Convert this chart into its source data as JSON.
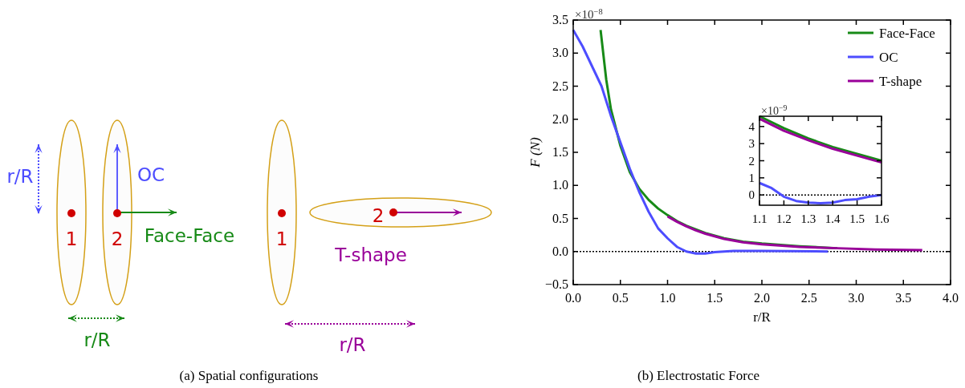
{
  "chart_data": [
    {
      "type": "other",
      "title": "(a) Spatial configurations",
      "annotations": [
        "r/R",
        "OC",
        "1",
        "2",
        "Face-Face",
        "1",
        "2",
        "T-shape",
        "r/R",
        "r/R"
      ]
    },
    {
      "type": "line",
      "title": "(b)  Electrostatic Force",
      "xlabel": "r/R",
      "ylabel": "F (N)",
      "annotations": [
        "×10$^{−8}$"
      ],
      "xlim": [
        0,
        4
      ],
      "ylim": [
        -0.5,
        3.5
      ],
      "xticks": [
        {
          "value": 0,
          "label": "0.0"
        },
        0.5,
        {
          "value": 1,
          "label": "1.0"
        },
        1.5,
        {
          "value": 2,
          "label": "2.0"
        },
        2.5,
        {
          "value": 3,
          "label": "3.0"
        },
        3.5,
        {
          "value": 4,
          "label": "4.0"
        }
      ],
      "yticks": [
        {
          "value": -0.5,
          "label": "−0.5"
        },
        {
          "value": 0,
          "label": "0.0"
        },
        0.5,
        {
          "value": 1,
          "label": "1.0"
        },
        1.5,
        {
          "value": 2,
          "label": "2.0"
        },
        2.5,
        {
          "value": 3,
          "label": "3.0"
        },
        3.5
      ],
      "legend": "top right",
      "grid": false,
      "line_style": "solid",
      "ref_lines": [
        {
          "axis": "y",
          "value": 0,
          "line_style": "dotted",
          "color": "#000000"
        }
      ],
      "series": [
        {
          "name": "Face-Face",
          "color": "#178a17",
          "x": [
            0.29,
            0.35,
            0.4,
            0.5,
            0.6,
            0.7,
            0.8,
            0.9,
            1.0,
            1.1,
            1.2,
            1.4,
            1.6,
            1.8,
            2.0,
            2.4,
            2.8
          ],
          "values": [
            3.35,
            2.6,
            2.15,
            1.6,
            1.2,
            0.95,
            0.78,
            0.65,
            0.55,
            0.46,
            0.39,
            0.28,
            0.2,
            0.15,
            0.12,
            0.08,
            0.05
          ]
        },
        {
          "name": "OC",
          "color": "#4d4dff",
          "x": [
            0,
            0.1,
            0.2,
            0.3,
            0.4,
            0.5,
            0.6,
            0.7,
            0.8,
            0.9,
            1.0,
            1.1,
            1.2,
            1.3,
            1.4,
            1.5,
            1.7,
            2.0,
            2.7
          ],
          "values": [
            3.35,
            3.1,
            2.8,
            2.5,
            2.05,
            1.65,
            1.25,
            0.9,
            0.6,
            0.35,
            0.2,
            0.07,
            0.0,
            -0.03,
            -0.03,
            -0.01,
            0.01,
            0.01,
            0.0
          ]
        },
        {
          "name": "T-shape",
          "color": "#990099",
          "x": [
            1.0,
            1.1,
            1.2,
            1.3,
            1.4,
            1.5,
            1.6,
            1.8,
            2.0,
            2.4,
            2.8,
            3.2,
            3.7
          ],
          "values": [
            0.53,
            0.45,
            0.38,
            0.32,
            0.27,
            0.23,
            0.19,
            0.14,
            0.11,
            0.07,
            0.05,
            0.03,
            0.02
          ]
        }
      ]
    },
    {
      "type": "line",
      "annotations": [
        "×10$^{−9}$"
      ],
      "xlim": [
        1.1,
        1.6
      ],
      "ylim": [
        -0.6,
        4.6
      ],
      "xticks": [
        1.1,
        1.2,
        1.3,
        1.4,
        1.5,
        1.6
      ],
      "yticks": [
        0,
        1,
        2,
        3,
        4
      ],
      "grid": false,
      "line_style": "solid",
      "ref_lines": [
        {
          "axis": "y",
          "value": 0,
          "line_style": "dotted",
          "color": "#000000"
        }
      ],
      "series": [
        {
          "color": "#178a17",
          "x": [
            1.1,
            1.2,
            1.3,
            1.4,
            1.5,
            1.6
          ],
          "values": [
            4.6,
            3.9,
            3.3,
            2.8,
            2.4,
            2.0
          ]
        },
        {
          "color": "#4d4dff",
          "x": [
            1.1,
            1.15,
            1.2,
            1.25,
            1.3,
            1.35,
            1.4,
            1.45,
            1.5,
            1.55,
            1.6
          ],
          "values": [
            0.7,
            0.4,
            -0.1,
            -0.35,
            -0.45,
            -0.48,
            -0.45,
            -0.3,
            -0.25,
            -0.1,
            0.0
          ]
        },
        {
          "color": "#990099",
          "x": [
            1.1,
            1.2,
            1.3,
            1.4,
            1.5,
            1.6
          ],
          "values": [
            4.45,
            3.75,
            3.2,
            2.7,
            2.3,
            1.9
          ]
        }
      ]
    }
  ]
}
